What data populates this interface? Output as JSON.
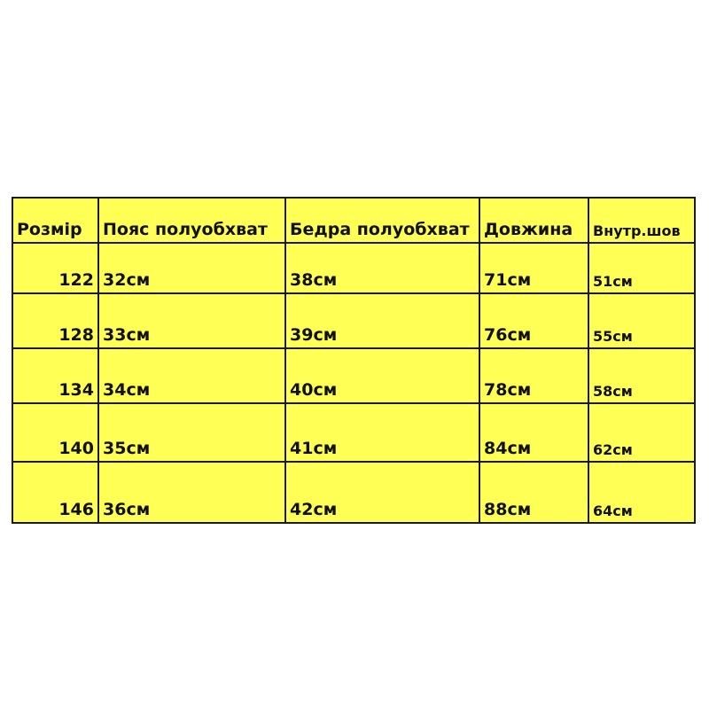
{
  "table": {
    "headers": [
      "Розмір",
      "Пояс полуобхват",
      "Бедра полуобхват",
      "Довжина",
      "Внутр.шов"
    ],
    "rows": [
      [
        "122",
        "32см",
        "38см",
        "71см",
        "51см"
      ],
      [
        "128",
        "33см",
        "39см",
        "76см",
        "55см"
      ],
      [
        "134",
        "34см",
        "40см",
        "78см",
        "58см"
      ],
      [
        "140",
        "35см",
        "41см",
        "84см",
        "62см"
      ],
      [
        "146",
        "36см",
        "42см",
        "88см",
        "64см"
      ]
    ]
  },
  "colors": {
    "cell_background": "#ffff55",
    "border": "#1a1a1a"
  }
}
